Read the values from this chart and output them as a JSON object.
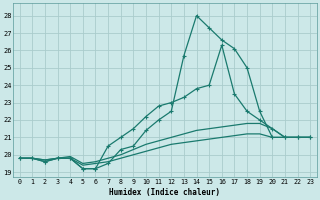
{
  "xlabel": "Humidex (Indice chaleur)",
  "background_color": "#cce8e8",
  "grid_color": "#aacccc",
  "line_color": "#1a7a6e",
  "xlim": [
    -0.5,
    23.5
  ],
  "ylim": [
    18.7,
    28.7
  ],
  "yticks": [
    19,
    20,
    21,
    22,
    23,
    24,
    25,
    26,
    27,
    28
  ],
  "xticks": [
    0,
    1,
    2,
    3,
    4,
    5,
    6,
    7,
    8,
    9,
    10,
    11,
    12,
    13,
    14,
    15,
    16,
    17,
    18,
    19,
    20,
    21,
    22,
    23
  ],
  "line1_x": [
    0,
    1,
    2,
    3,
    4,
    5,
    6,
    7,
    8,
    9,
    10,
    11,
    12,
    13,
    14,
    15,
    16,
    17,
    18,
    19,
    20,
    21,
    22,
    23
  ],
  "line1_y": [
    19.8,
    19.8,
    19.6,
    19.8,
    19.8,
    19.2,
    19.2,
    19.5,
    20.3,
    20.5,
    21.4,
    22.0,
    22.5,
    25.7,
    28.0,
    27.3,
    26.6,
    26.1,
    25.0,
    22.5,
    21.0,
    21.0,
    21.0,
    21.0
  ],
  "line2_x": [
    0,
    1,
    2,
    3,
    4,
    5,
    6,
    7,
    8,
    9,
    10,
    11,
    12,
    13,
    14,
    15,
    16,
    17,
    18,
    19,
    20,
    21,
    22,
    23
  ],
  "line2_y": [
    19.8,
    19.8,
    19.6,
    19.8,
    19.8,
    19.2,
    19.2,
    20.5,
    21.0,
    21.5,
    22.2,
    22.8,
    23.0,
    23.3,
    23.8,
    24.0,
    26.3,
    23.5,
    22.5,
    22.0,
    21.5,
    21.0,
    21.0,
    21.0
  ],
  "line3_x": [
    0,
    1,
    2,
    3,
    4,
    5,
    6,
    7,
    8,
    9,
    10,
    11,
    12,
    13,
    14,
    15,
    16,
    17,
    18,
    19,
    20,
    21,
    22,
    23
  ],
  "line3_y": [
    19.8,
    19.8,
    19.7,
    19.8,
    19.9,
    19.5,
    19.6,
    19.8,
    20.0,
    20.3,
    20.6,
    20.8,
    21.0,
    21.2,
    21.4,
    21.5,
    21.6,
    21.7,
    21.8,
    21.8,
    21.5,
    21.0,
    21.0,
    21.0
  ],
  "line4_x": [
    0,
    1,
    2,
    3,
    4,
    5,
    6,
    7,
    8,
    9,
    10,
    11,
    12,
    13,
    14,
    15,
    16,
    17,
    18,
    19,
    20,
    21,
    22,
    23
  ],
  "line4_y": [
    19.8,
    19.8,
    19.7,
    19.8,
    19.8,
    19.4,
    19.5,
    19.6,
    19.8,
    20.0,
    20.2,
    20.4,
    20.6,
    20.7,
    20.8,
    20.9,
    21.0,
    21.1,
    21.2,
    21.2,
    21.0,
    21.0,
    21.0,
    21.0
  ]
}
